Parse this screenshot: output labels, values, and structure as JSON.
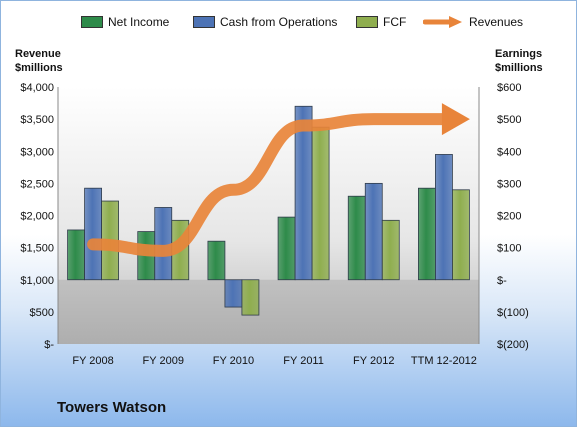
{
  "company": "Towers Watson",
  "chart_data": {
    "type": "bar",
    "categories": [
      "FY 2008",
      "FY 2009",
      "FY 2010",
      "FY 2011",
      "FY 2012",
      "TTM 12-2012"
    ],
    "series": [
      {
        "name": "Net Income",
        "axis": "right",
        "values": [
          155,
          150,
          120,
          195,
          260,
          285
        ],
        "color": "#2e8b4a"
      },
      {
        "name": "Cash from Operations",
        "axis": "right",
        "values": [
          285,
          225,
          -85,
          540,
          300,
          390
        ],
        "color": "#4d73b5"
      },
      {
        "name": "FCF",
        "axis": "right",
        "values": [
          245,
          185,
          -110,
          475,
          185,
          280
        ],
        "color": "#8fae4f"
      },
      {
        "name": "Revenues",
        "axis": "left",
        "type": "line",
        "values": [
          1550,
          1450,
          2400,
          3400,
          3500,
          3500
        ],
        "color": "#e8843a"
      }
    ],
    "left_axis": {
      "title": [
        "Revenue",
        "$millions"
      ],
      "ylim": [
        0,
        4000
      ],
      "ticks": [
        "$-",
        "$500",
        "$1,000",
        "$1,500",
        "$2,000",
        "$2,500",
        "$3,000",
        "$3,500",
        "$4,000"
      ]
    },
    "right_axis": {
      "title": [
        "Earnings",
        "$millions"
      ],
      "ylim": [
        -200,
        600
      ],
      "ticks": [
        "$(200)",
        "$(100)",
        "$-",
        "$100",
        "$200",
        "$300",
        "$400",
        "$500",
        "$600"
      ]
    },
    "legend": "top",
    "grid": false
  }
}
